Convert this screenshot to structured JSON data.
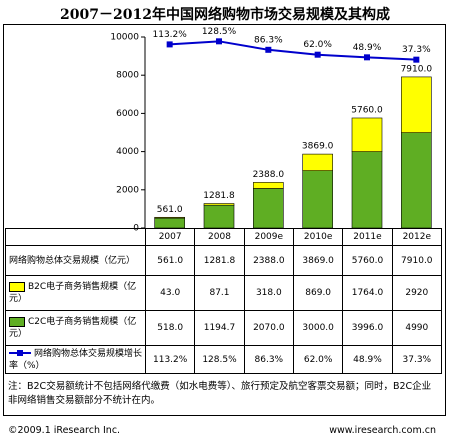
{
  "chart_data": {
    "type": "bar",
    "title": "2007－2012年中国网络购物市场交易规模及其构成",
    "categories": [
      "2007",
      "2008",
      "2009e",
      "2010e",
      "2011e",
      "2012e"
    ],
    "ylim": [
      0,
      10000
    ],
    "yticks": [
      0,
      2000,
      4000,
      6000,
      8000,
      10000
    ],
    "y2lim": [
      -800,
      150
    ],
    "totals": {
      "name": "网络购物总体交易规模（亿元）",
      "values": [
        561.0,
        1281.8,
        2388.0,
        3869.0,
        5760.0,
        7910.0
      ],
      "value_labels": [
        "561.0",
        "1281.8",
        "2388.0",
        "3869.0",
        "5760.0",
        "7910.0"
      ]
    },
    "series": [
      {
        "name": "B2C电子商务销售规模（亿元）",
        "color": "#ffff00",
        "values": [
          43.0,
          87.1,
          318.0,
          869.0,
          1764.0,
          2920
        ],
        "value_labels": [
          "43.0",
          "87.1",
          "318.0",
          "869.0",
          "1764.0",
          "2920"
        ]
      },
      {
        "name": "C2C电子商务销售规模（亿元）",
        "color": "#5fae23",
        "values": [
          518.0,
          1194.7,
          2070.0,
          3000.0,
          3996.0,
          4990
        ],
        "value_labels": [
          "518.0",
          "1194.7",
          "2070.0",
          "3000.0",
          "3996.0",
          "4990"
        ]
      },
      {
        "name": "网络购物总体交易规模增长率（%）",
        "color": "#0000cc",
        "axis": "y2",
        "type": "line",
        "values": [
          113.2,
          128.5,
          86.3,
          62.0,
          48.9,
          37.3
        ],
        "value_labels": [
          "113.2%",
          "128.5%",
          "86.3%",
          "62.0%",
          "48.9%",
          "37.3%"
        ]
      }
    ],
    "note": "注：B2C交易额统计不包括网络代缴费（如水电费等）、旅行预定及航空客票交易额；同时，B2C企业非网络销售交易额部分不统计在内。",
    "footer_left": "©2009.1 iResearch Inc.",
    "footer_right": "www.iresearch.com.cn"
  }
}
